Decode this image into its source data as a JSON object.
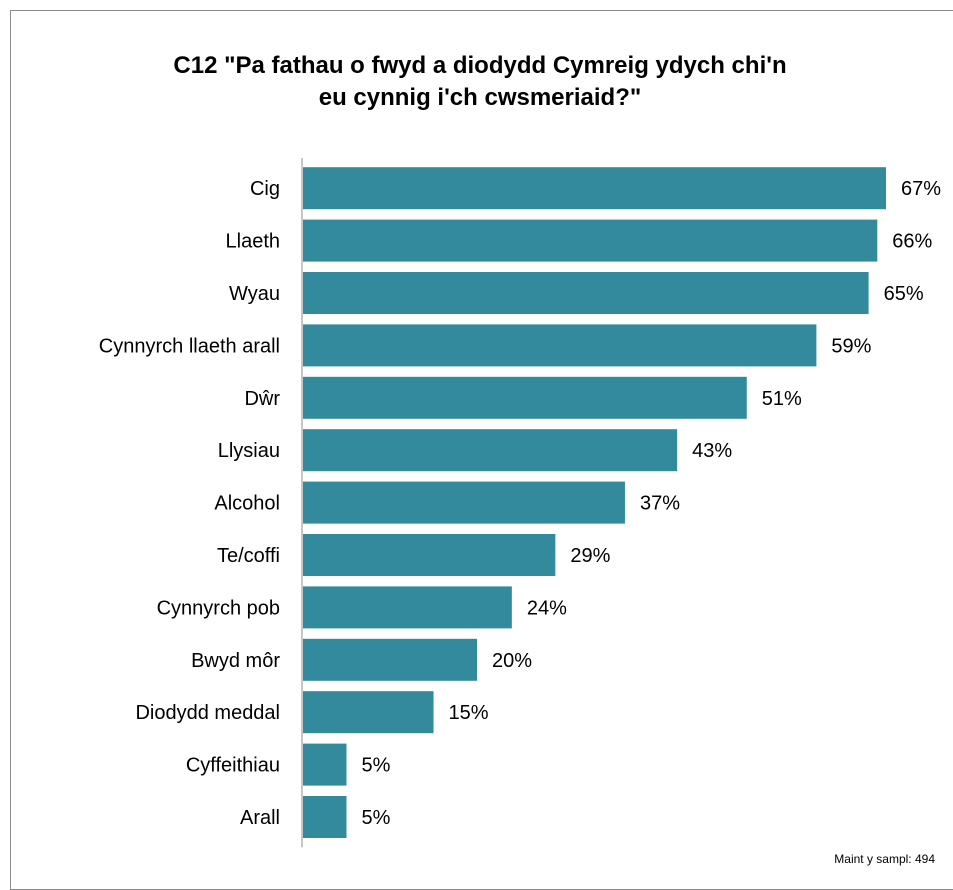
{
  "title_line1": "C12 \"Pa fathau o fwyd a diodydd Cymreig ydych chi'n",
  "title_line2": "eu cynnig i'ch cwsmeriaid?\"",
  "note": "Maint y sampl: 494",
  "colors": {
    "bar": "#338a9c",
    "axis": "#8c8c8c",
    "text": "#000000"
  },
  "chart_data": {
    "type": "bar",
    "orientation": "horizontal",
    "categories": [
      "Cig",
      "Llaeth",
      "Wyau",
      "Cynnyrch llaeth arall",
      "Dŵr",
      "Llysiau",
      "Alcohol",
      "Te/coffi",
      "Cynnyrch pob",
      "Bwyd môr",
      "Diodydd meddal",
      "Cyffeithiau",
      "Arall"
    ],
    "values": [
      67,
      66,
      65,
      59,
      51,
      43,
      37,
      29,
      24,
      20,
      15,
      5,
      5
    ],
    "value_labels": [
      "67%",
      "66%",
      "65%",
      "59%",
      "51%",
      "43%",
      "37%",
      "29%",
      "24%",
      "20%",
      "15%",
      "5%",
      "5%"
    ],
    "value_unit": "%",
    "grid": false,
    "legend": "none"
  }
}
